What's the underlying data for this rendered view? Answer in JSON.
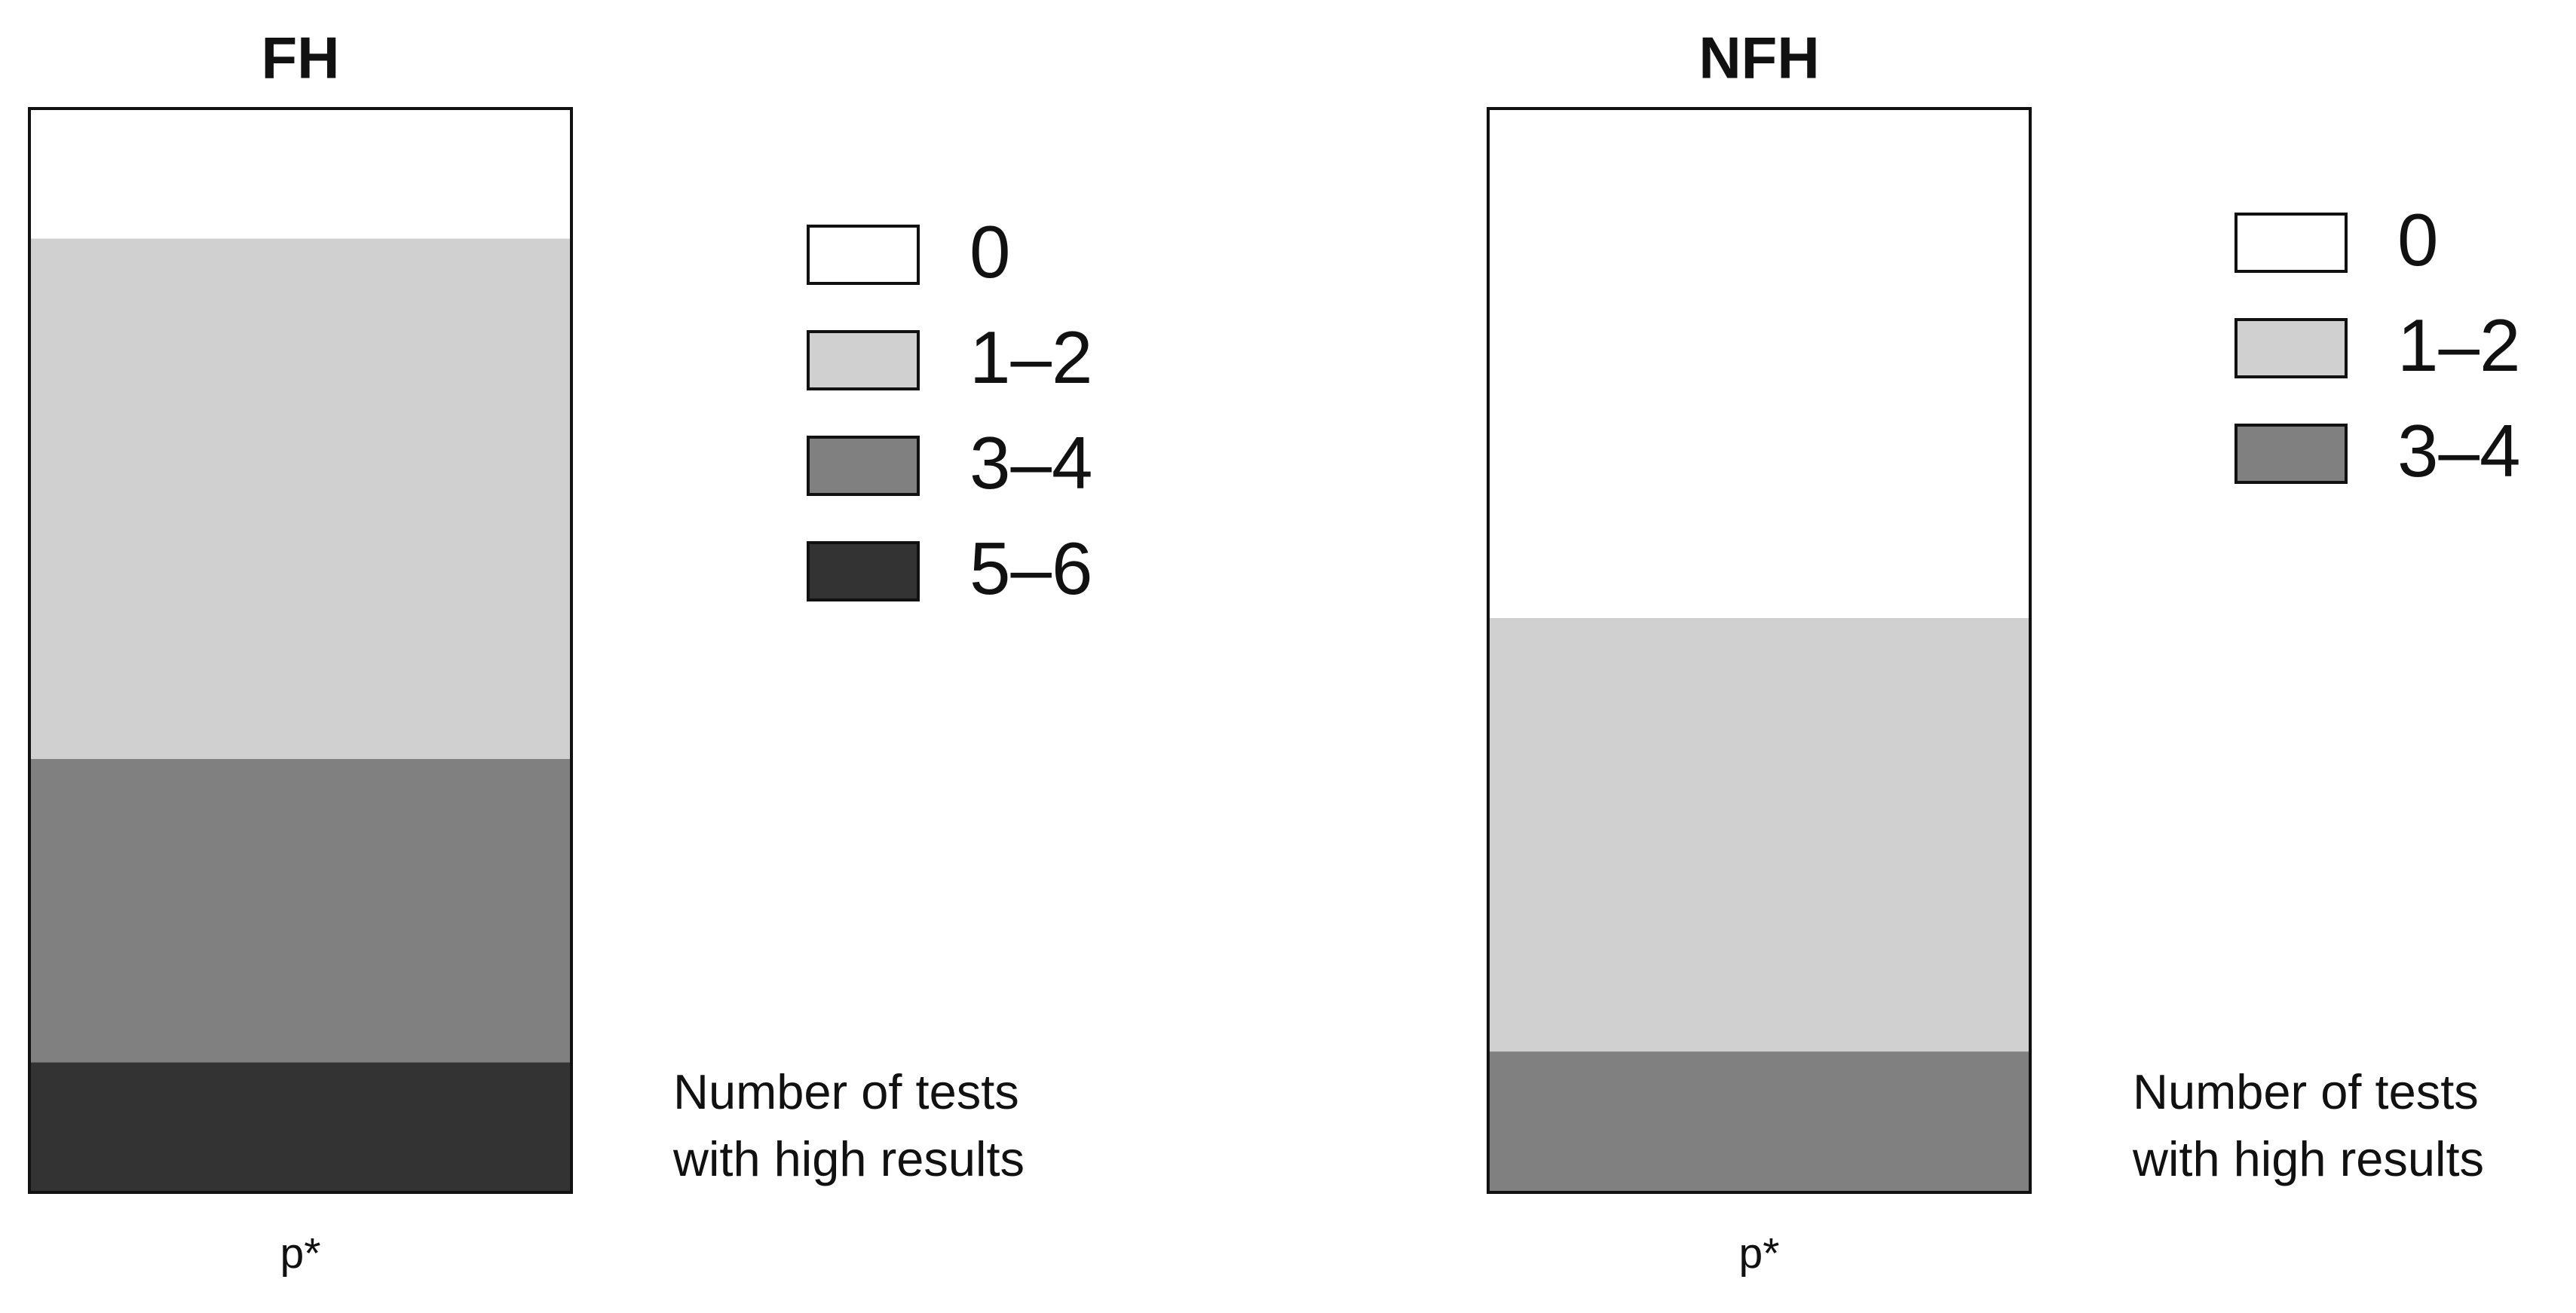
{
  "chart_data": [
    {
      "type": "bar",
      "title": "FH",
      "categories": [
        "p*"
      ],
      "legend_title": "Number of tests with high results",
      "series": [
        {
          "name": "0",
          "color": "#ffffff",
          "values": [
            12
          ]
        },
        {
          "name": "1–2",
          "color": "#d0d0d0",
          "values": [
            48
          ]
        },
        {
          "name": "3–4",
          "color": "#808080",
          "values": [
            28
          ]
        },
        {
          "name": "5–6",
          "color": "#333333",
          "values": [
            12
          ]
        }
      ]
    },
    {
      "type": "bar",
      "title": "NFH",
      "categories": [
        "p*"
      ],
      "legend_title": "Number of tests with high results",
      "series": [
        {
          "name": "0",
          "color": "#ffffff",
          "values": [
            47
          ]
        },
        {
          "name": "1–2",
          "color": "#d0d0d0",
          "values": [
            40
          ]
        },
        {
          "name": "3–4",
          "color": "#808080",
          "values": [
            13
          ]
        }
      ]
    }
  ]
}
